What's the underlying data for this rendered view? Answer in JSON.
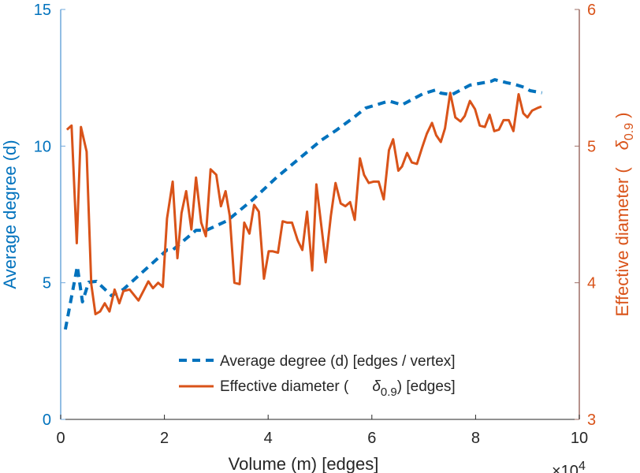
{
  "chart_data": {
    "type": "line",
    "title": "",
    "xlabel": "Volume (m) [edges]",
    "x_multiplier": "×10",
    "x_multiplier_exp": "4",
    "ylabel_left": "Average degree (d)",
    "ylabel_right_prefix": "Effective diameter (",
    "ylabel_right_symbol": "δ",
    "ylabel_right_sub": "0.9",
    "ylabel_right_suffix": ")",
    "xlim": [
      0,
      10
    ],
    "ylim_left": [
      0,
      15
    ],
    "ylim_right": [
      3,
      6
    ],
    "xticks": [
      "0",
      "2",
      "4",
      "6",
      "8",
      "10"
    ],
    "yticks_left": [
      "0",
      "5",
      "10",
      "15"
    ],
    "yticks_right": [
      "3",
      "4",
      "5",
      "6"
    ],
    "grid": false,
    "legend_position": "bottom-center",
    "colors": {
      "left": "#0072BD",
      "right": "#D95319",
      "axis": "#262626"
    },
    "legend": [
      {
        "name": "Average degree (d) [edges / vertex]",
        "style": "dashed"
      },
      {
        "name_prefix": "Effective diameter (",
        "symbol": "δ",
        "sub": "0.9",
        "name_suffix": ") [edges]",
        "style": "solid"
      }
    ],
    "series": [
      {
        "name": "Average degree (d) [edges / vertex]",
        "axis": "left",
        "x": [
          0.09,
          0.32,
          0.42,
          0.54,
          0.69,
          0.98,
          1.21,
          2.05,
          2.16,
          2.61,
          2.81,
          3.21,
          3.71,
          4.16,
          5.02,
          5.32,
          5.63,
          5.88,
          6.33,
          6.58,
          6.98,
          7.24,
          7.33,
          7.54,
          7.89,
          8.3,
          8.37,
          8.6,
          8.75,
          8.94,
          9.05,
          9.28
        ],
        "y": [
          3.29,
          5.6,
          4.3,
          5.02,
          5.05,
          4.53,
          4.76,
          6.2,
          6.2,
          6.92,
          6.92,
          7.27,
          8.05,
          8.85,
          10.21,
          10.59,
          11.02,
          11.39,
          11.65,
          11.51,
          11.91,
          12.06,
          11.94,
          11.88,
          12.23,
          12.37,
          12.43,
          12.32,
          12.26,
          12.15,
          12.03,
          11.95
        ]
      },
      {
        "name": "Effective diameter (δ0.9) [edges]",
        "axis": "right",
        "x": [
          0.12,
          0.21,
          0.31,
          0.39,
          0.5,
          0.59,
          0.67,
          0.76,
          0.85,
          0.94,
          1.04,
          1.13,
          1.21,
          1.33,
          1.5,
          1.61,
          1.69,
          1.78,
          1.88,
          1.97,
          2.05,
          2.16,
          2.25,
          2.33,
          2.42,
          2.52,
          2.61,
          2.71,
          2.8,
          2.89,
          3.0,
          3.09,
          3.18,
          3.26,
          3.35,
          3.45,
          3.54,
          3.64,
          3.73,
          3.82,
          3.92,
          4.01,
          4.09,
          4.19,
          4.28,
          4.37,
          4.46,
          4.57,
          4.66,
          4.75,
          4.85,
          4.93,
          5.11,
          5.21,
          5.3,
          5.4,
          5.49,
          5.58,
          5.67,
          5.77,
          5.85,
          5.94,
          6.03,
          6.13,
          6.23,
          6.33,
          6.41,
          6.51,
          6.58,
          6.68,
          6.77,
          6.87,
          6.97,
          7.06,
          7.16,
          7.24,
          7.33,
          7.41,
          7.51,
          7.61,
          7.71,
          7.79,
          7.89,
          7.99,
          8.08,
          8.18,
          8.27,
          8.36,
          8.45,
          8.54,
          8.64,
          8.73,
          8.83,
          8.92,
          9.0,
          9.09,
          9.2,
          9.27
        ],
        "y": [
          5.12,
          5.15,
          4.29,
          5.14,
          4.96,
          3.99,
          3.77,
          3.79,
          3.85,
          3.79,
          3.95,
          3.85,
          3.94,
          3.95,
          3.87,
          3.95,
          4.01,
          3.96,
          4.0,
          3.97,
          4.47,
          4.74,
          4.18,
          4.51,
          4.67,
          4.39,
          4.77,
          4.44,
          4.34,
          4.83,
          4.79,
          4.56,
          4.67,
          4.49,
          4.0,
          3.99,
          4.44,
          4.36,
          4.57,
          4.52,
          4.03,
          4.23,
          4.23,
          4.22,
          4.45,
          4.44,
          4.44,
          4.31,
          4.24,
          4.52,
          4.09,
          4.72,
          4.15,
          4.49,
          4.73,
          4.58,
          4.56,
          4.59,
          4.46,
          4.91,
          4.79,
          4.73,
          4.74,
          4.74,
          4.61,
          4.97,
          5.05,
          4.82,
          4.85,
          4.95,
          4.88,
          4.87,
          4.99,
          5.09,
          5.17,
          5.08,
          5.03,
          5.13,
          5.39,
          5.21,
          5.18,
          5.22,
          5.33,
          5.27,
          5.15,
          5.14,
          5.23,
          5.11,
          5.12,
          5.19,
          5.19,
          5.11,
          5.38,
          5.24,
          5.21,
          5.26,
          5.28,
          5.29
        ]
      }
    ]
  }
}
